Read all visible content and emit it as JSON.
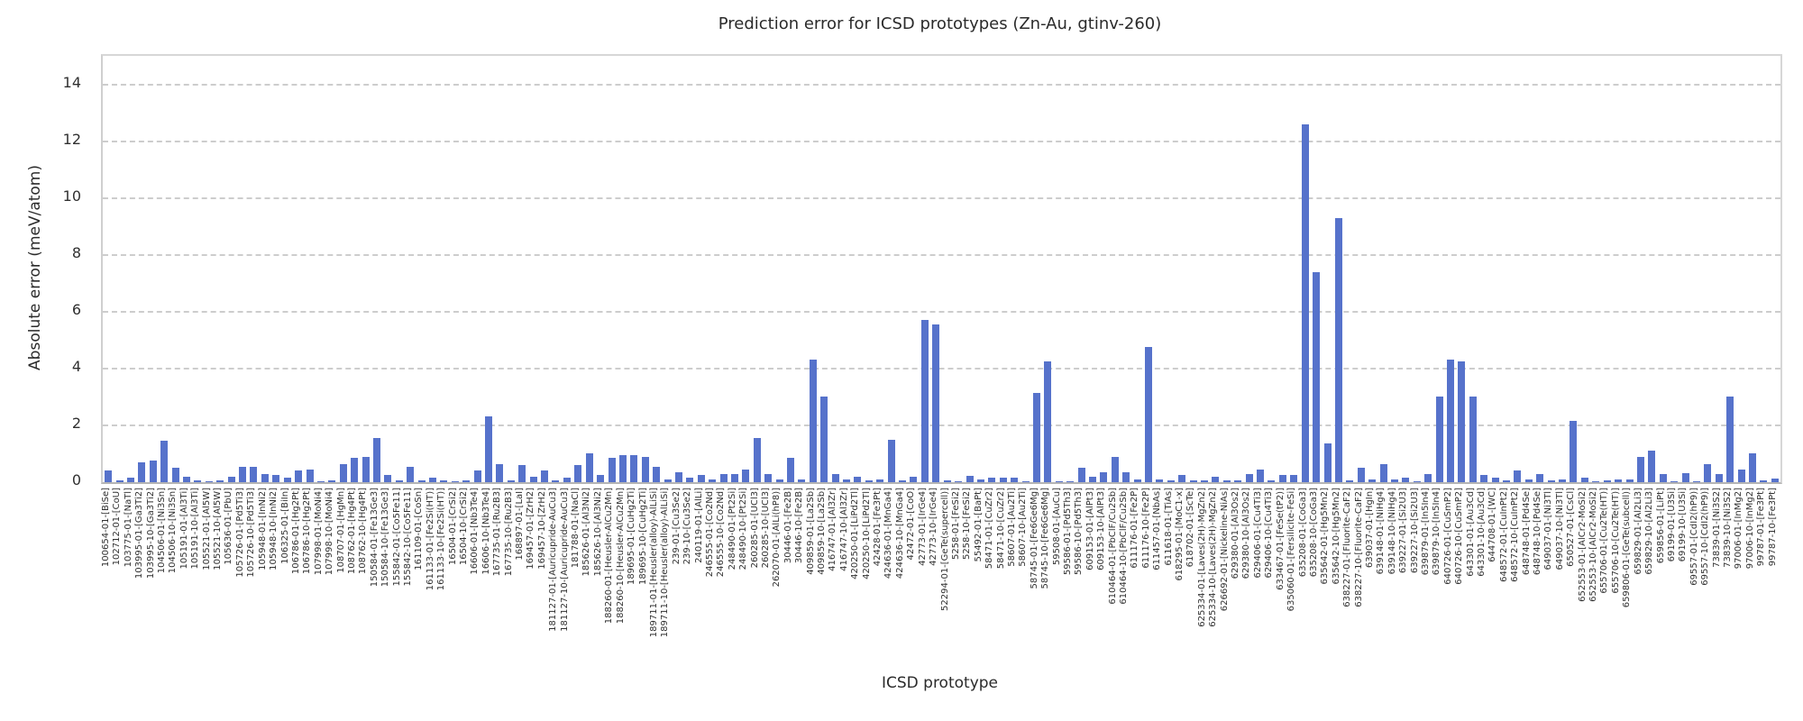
{
  "chart_data": {
    "type": "bar",
    "title": "Prediction error for ICSD prototypes (Zn-Au, gtinv-260)",
    "xlabel": "ICSD prototype",
    "ylabel": "Absolute error (meV/atom)",
    "ylim": [
      0,
      15
    ],
    "yticks": [
      0,
      2,
      4,
      6,
      8,
      10,
      12,
      14
    ],
    "grid": "horizontal-dashed",
    "legend": "none",
    "bar_color": "#5672cb",
    "grid_color": "#cdcdcd",
    "text_color": "#2b2b2b",
    "categories": [
      "100654-01-[BiSe]",
      "102712-01-[CoU]",
      "103775-01-[NaTl]",
      "103995-01-[Ga3Ti2]",
      "103995-10-[Ga3Ti2]",
      "104506-01-[Ni3Sn]",
      "104506-10-[Ni3Sn]",
      "105191-01-[Al3Ti]",
      "105191-10-[Al3Ti]",
      "105521-01-[Al5W]",
      "105521-10-[Al5W]",
      "105636-01-[PbU]",
      "105726-01-[Pd5Ti3]",
      "105726-10-[Pd5Ti3]",
      "105948-01-[InNi2]",
      "105948-10-[InNi2]",
      "106325-01-[BiIn]",
      "106786-01-[Hg2Pt]",
      "106786-10-[Hg2Pt]",
      "107998-01-[MoNi4]",
      "107998-10-[MoNi4]",
      "108707-01-[HgMn]",
      "108762-01-[Hg4Pt]",
      "108762-10-[Hg4Pt]",
      "150584-01-[Fe13Ge3]",
      "150584-10-[Fe13Ge3]",
      "155842-01-[Co5Fe11]",
      "155842-10-[Co5Fe11]",
      "161109-01-[CoSn]",
      "161133-01-[Fe2Si(HT)]",
      "161133-10-[Fe2Si(HT)]",
      "16504-01-[CrSi2]",
      "16504-10-[CrSi2]",
      "16606-01-[Nb3Te4]",
      "16606-10-[Nb3Te4]",
      "167735-01-[Ru2B3]",
      "167735-10-[Ru2B3]",
      "168897-01-[LaI]",
      "169457-01-[ZrH2]",
      "169457-10-[ZrH2]",
      "181127-01-[Auricupride-AuCu3]",
      "181127-10-[Auricupride-AuCu3]",
      "181788-01-[NaCl]",
      "185626-01-[Al3Ni2]",
      "185626-10-[Al3Ni2]",
      "188260-01-[Heusler-AlCu2Mn]",
      "188260-10-[Heusler-AlCu2Mn]",
      "189695-01-[CuHg2Ti]",
      "189695-10-[CuHg2Ti]",
      "189711-01-[Heusler(alloy)-AlLiSi]",
      "189711-10-[Heusler(alloy)-AlLiSi]",
      "239-01-[Cu3Se2]",
      "239-10-[Cu3Se2]",
      "240119-01-[AlLi]",
      "246555-01-[Co2Nd]",
      "246555-10-[Co2Nd]",
      "248490-01-[Pt2Si]",
      "248490-10-[Pt2Si]",
      "260285-01-[UCl3]",
      "260285-10-[UCl3]",
      "262070-01-[AlLi(hP8)]",
      "30446-01-[Fe2B]",
      "30446-10-[Fe2B]",
      "409859-01-[La2Sb]",
      "409859-10-[La2Sb]",
      "416747-01-[Al3Zr]",
      "416747-10-[Al3Zr]",
      "420250-01-[LiPd2Tl]",
      "420250-10-[LiPd2Tl]",
      "42428-01-[Fe3Pt]",
      "424636-01-[MnGa4]",
      "424636-10-[MnGa4]",
      "42472-01-[CoO]",
      "42773-01-[IrGe4]",
      "42773-10-[IrGe4]",
      "52294-01-[GeTe(supercell)]",
      "5258-01-[FeSi2]",
      "5258-10-[FeSi2]",
      "55492-01-[BaPt]",
      "58471-01-[CuZr2]",
      "58471-10-[CuZr2]",
      "58607-01-[Au2Ti]",
      "58607-10-[Au2Ti]",
      "58745-01-[Fe6Ge6Mg]",
      "58745-10-[Fe6Ge6Mg]",
      "59508-01-[AuCu]",
      "59586-01-[Pd5Th3]",
      "59586-10-[Pd5Th3]",
      "609153-01-[AlPt3]",
      "609153-10-[AlPt3]",
      "610464-01-[PbClF/Cu2Sb]",
      "610464-10-[PbClF/Cu2Sb]",
      "611176-01-[Fe2P]",
      "611176-10-[Fe2P]",
      "611457-01-[NbAs]",
      "611618-01-[TiAs]",
      "618295-01-[MoC1-x]",
      "618702-01-[ScTe]",
      "625334-01-[Laves(2H)-MgZn2]",
      "625334-10-[Laves(2H)-MgZn2]",
      "626692-01-[Nickeline-NiAs]",
      "629380-01-[Al3Os2]",
      "629380-10-[Al3Os2]",
      "629406-01-[Cu4Ti3]",
      "629406-10-[Cu4Ti3]",
      "633467-01-[FeSe(tP2)]",
      "635060-01-[Fersilicite-FeSi]",
      "635208-01-[CoGa3]",
      "635208-10-[CoGa3]",
      "635642-01-[Hg5Mn2]",
      "635642-10-[Hg5Mn2]",
      "638227-01-[Fluorite-CaF2]",
      "638227-10-[Fluorite-CaF2]",
      "639037-01-[HgIn]",
      "639148-01-[NiHg4]",
      "639148-10-[NiHg4]",
      "639227-01-[Si2U3]",
      "639227-10-[Si2U3]",
      "639879-01-[In5In4]",
      "639879-10-[In5In4]",
      "640726-01-[CuSmP2]",
      "640726-10-[CuSmP2]",
      "643301-01-[Au3Cd]",
      "643301-10-[Au3Cd]",
      "644708-01-[WC]",
      "648572-01-[CuInPt2]",
      "648572-10-[CuInPt2]",
      "648748-01-[Pd4Se]",
      "648748-10-[Pd4Se]",
      "649037-01-[Ni3Tl]",
      "649037-10-[Ni3Tl]",
      "650527-01-[CsCl]",
      "652553-01-[AlCr2-MoSi2]",
      "652553-10-[AlCr2-MoSi2]",
      "655706-01-[Cu2Te(HT)]",
      "655706-10-[Cu2Te(HT)]",
      "659806-01-[GeTe(subcell)]",
      "659829-01-[Al2Li3]",
      "659829-10-[Al2Li3]",
      "659856-01-[LiPt]",
      "69199-01-[U3Si]",
      "69199-10-[U3Si]",
      "69557-01-[CdI2(hP9)]",
      "69557-10-[CdI2(hP9)]",
      "73839-01-[Ni3S2]",
      "73839-10-[Ni3S2]",
      "97006-01-[InMg2]",
      "97006-10-[InMg2]",
      "99787-01-[Fe3Pt]",
      "99787-10-[Fe3Pt]"
    ],
    "values": [
      0.4,
      0.07,
      0.15,
      0.7,
      0.75,
      1.45,
      0.5,
      0.2,
      0.05,
      0.03,
      0.05,
      0.2,
      0.55,
      0.55,
      0.3,
      0.25,
      0.15,
      0.4,
      0.45,
      0.02,
      0.05,
      0.65,
      0.85,
      0.9,
      1.55,
      0.25,
      0.05,
      0.55,
      0.05,
      0.15,
      0.05,
      0.03,
      0.05,
      0.4,
      2.3,
      0.65,
      0.05,
      0.6,
      0.2,
      0.4,
      0.07,
      0.15,
      0.6,
      1.0,
      0.25,
      0.85,
      0.95,
      0.95,
      0.9,
      0.55,
      0.1,
      0.35,
      0.15,
      0.25,
      0.08,
      0.3,
      0.3,
      0.45,
      1.55,
      0.3,
      0.1,
      0.85,
      0.1,
      4.3,
      3.0,
      0.3,
      0.1,
      0.2,
      0.05,
      0.1,
      1.5,
      0.05,
      0.2,
      5.7,
      5.55,
      0.07,
      0.03,
      0.22,
      0.1,
      0.15,
      0.15,
      0.15,
      0.02,
      3.15,
      4.25,
      0.02,
      0.02,
      0.5,
      0.2,
      0.35,
      0.9,
      0.35,
      0.1,
      4.75,
      0.1,
      0.07,
      0.25,
      0.05,
      0.05,
      0.2,
      0.05,
      0.05,
      0.3,
      0.45,
      0.05,
      0.25,
      0.25,
      12.6,
      7.4,
      1.35,
      9.3,
      0.05,
      0.5,
      0.1,
      0.65,
      0.1,
      0.15,
      0.02,
      0.3,
      3.0,
      4.3,
      4.25,
      3.0,
      0.25,
      0.15,
      0.05,
      0.4,
      0.1,
      0.3,
      0.05,
      0.1,
      2.15,
      0.15,
      0.02,
      0.07,
      0.1,
      0.1,
      0.9,
      1.1,
      0.3,
      0.02,
      0.33,
      0.02,
      0.63,
      0.3,
      3.0,
      0.45,
      1.0,
      0.07,
      0.13
    ]
  }
}
